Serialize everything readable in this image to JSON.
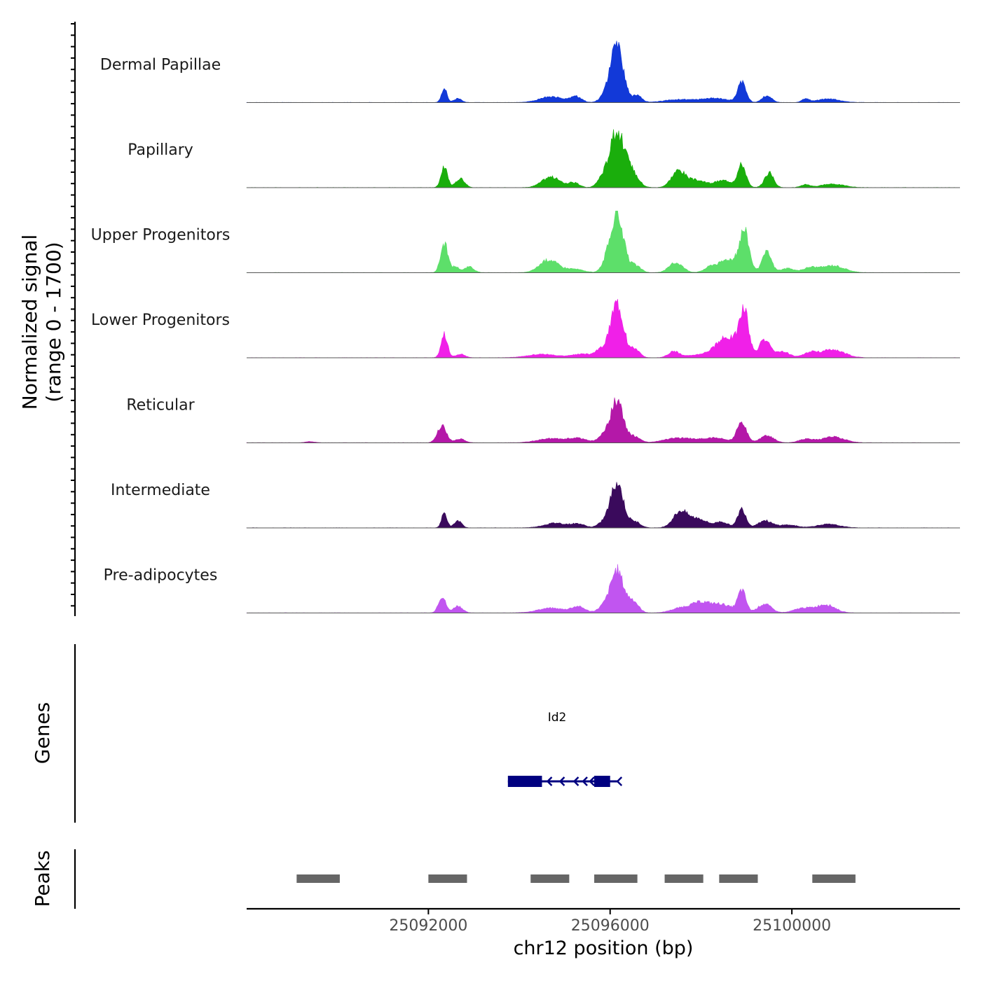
{
  "chart_data": {
    "type": "area",
    "title": "",
    "chromosome": "chr12",
    "xlabel": "chr12 position (bp)",
    "ylabel_line1": "Normalized signal",
    "ylabel_line2": "(range 0 - 1700)",
    "y_range": [
      0,
      1700
    ],
    "xlim": [
      25088000,
      25103700
    ],
    "x_ticks": [
      {
        "value": 25092000,
        "label": "25092000"
      },
      {
        "value": 25096000,
        "label": "25096000"
      },
      {
        "value": 25100000,
        "label": "25100000"
      }
    ],
    "peak_positions": [
      25089140,
      25092060,
      25092450,
      25092700,
      25093100,
      25094450,
      25095050,
      25095400,
      25095800,
      25096100,
      25096250,
      25096500,
      25097400,
      25097800,
      25098200,
      25098600,
      25098900,
      25099300,
      25099600,
      25100300,
      25100600,
      25101000,
      25101300
    ],
    "series": [
      {
        "name": "Dermal Papillae",
        "color": "#1239d8",
        "peaks": [
          {
            "x": 25092350,
            "h": 0.25,
            "w": 60
          },
          {
            "x": 25092650,
            "h": 0.07,
            "w": 80
          },
          {
            "x": 25094700,
            "h": 0.1,
            "w": 250
          },
          {
            "x": 25095250,
            "h": 0.1,
            "w": 120
          },
          {
            "x": 25095900,
            "h": 0.1,
            "w": 120
          },
          {
            "x": 25096150,
            "h": 0.95,
            "w": 140
          },
          {
            "x": 25096600,
            "h": 0.12,
            "w": 100
          },
          {
            "x": 25097500,
            "h": 0.05,
            "w": 300
          },
          {
            "x": 25098300,
            "h": 0.07,
            "w": 300
          },
          {
            "x": 25098900,
            "h": 0.35,
            "w": 90
          },
          {
            "x": 25099450,
            "h": 0.12,
            "w": 100
          },
          {
            "x": 25100300,
            "h": 0.06,
            "w": 80
          },
          {
            "x": 25100800,
            "h": 0.06,
            "w": 250
          }
        ]
      },
      {
        "name": "Papillary",
        "color": "#1aae0c",
        "peaks": [
          {
            "x": 25092350,
            "h": 0.35,
            "w": 70
          },
          {
            "x": 25092700,
            "h": 0.15,
            "w": 100
          },
          {
            "x": 25094700,
            "h": 0.18,
            "w": 200
          },
          {
            "x": 25095200,
            "h": 0.08,
            "w": 120
          },
          {
            "x": 25095800,
            "h": 0.1,
            "w": 100
          },
          {
            "x": 25096150,
            "h": 0.95,
            "w": 170
          },
          {
            "x": 25096500,
            "h": 0.2,
            "w": 140
          },
          {
            "x": 25097500,
            "h": 0.28,
            "w": 150
          },
          {
            "x": 25097900,
            "h": 0.12,
            "w": 200
          },
          {
            "x": 25098500,
            "h": 0.12,
            "w": 200
          },
          {
            "x": 25098900,
            "h": 0.38,
            "w": 90
          },
          {
            "x": 25099500,
            "h": 0.25,
            "w": 100
          },
          {
            "x": 25100300,
            "h": 0.05,
            "w": 100
          },
          {
            "x": 25100900,
            "h": 0.06,
            "w": 250
          }
        ]
      },
      {
        "name": "Upper Progenitors",
        "color": "#5ddf6a",
        "peaks": [
          {
            "x": 25092350,
            "h": 0.5,
            "w": 80
          },
          {
            "x": 25092600,
            "h": 0.1,
            "w": 80
          },
          {
            "x": 25092900,
            "h": 0.1,
            "w": 100
          },
          {
            "x": 25094650,
            "h": 0.22,
            "w": 200
          },
          {
            "x": 25095200,
            "h": 0.06,
            "w": 200
          },
          {
            "x": 25095900,
            "h": 0.12,
            "w": 100
          },
          {
            "x": 25096150,
            "h": 1.0,
            "w": 140
          },
          {
            "x": 25096550,
            "h": 0.12,
            "w": 120
          },
          {
            "x": 25097450,
            "h": 0.17,
            "w": 150
          },
          {
            "x": 25098250,
            "h": 0.12,
            "w": 150
          },
          {
            "x": 25098600,
            "h": 0.22,
            "w": 150
          },
          {
            "x": 25098950,
            "h": 0.72,
            "w": 110
          },
          {
            "x": 25099450,
            "h": 0.35,
            "w": 100
          },
          {
            "x": 25099900,
            "h": 0.07,
            "w": 150
          },
          {
            "x": 25100400,
            "h": 0.08,
            "w": 150
          },
          {
            "x": 25100900,
            "h": 0.12,
            "w": 250
          }
        ]
      },
      {
        "name": "Lower Progenitors",
        "color": "#f020e8",
        "peaks": [
          {
            "x": 25092350,
            "h": 0.4,
            "w": 70
          },
          {
            "x": 25092700,
            "h": 0.06,
            "w": 100
          },
          {
            "x": 25094500,
            "h": 0.06,
            "w": 300
          },
          {
            "x": 25095400,
            "h": 0.06,
            "w": 250
          },
          {
            "x": 25095800,
            "h": 0.12,
            "w": 120
          },
          {
            "x": 25096150,
            "h": 0.95,
            "w": 140
          },
          {
            "x": 25096550,
            "h": 0.15,
            "w": 100
          },
          {
            "x": 25097400,
            "h": 0.1,
            "w": 120
          },
          {
            "x": 25098000,
            "h": 0.05,
            "w": 300
          },
          {
            "x": 25098600,
            "h": 0.35,
            "w": 250
          },
          {
            "x": 25098950,
            "h": 0.72,
            "w": 100
          },
          {
            "x": 25099400,
            "h": 0.3,
            "w": 120
          },
          {
            "x": 25099800,
            "h": 0.1,
            "w": 150
          },
          {
            "x": 25100400,
            "h": 0.08,
            "w": 150
          },
          {
            "x": 25100900,
            "h": 0.14,
            "w": 250
          }
        ]
      },
      {
        "name": "Reticular",
        "color": "#b418a8",
        "peaks": [
          {
            "x": 25089400,
            "h": 0.02,
            "w": 100
          },
          {
            "x": 25092300,
            "h": 0.28,
            "w": 100
          },
          {
            "x": 25092700,
            "h": 0.07,
            "w": 100
          },
          {
            "x": 25094700,
            "h": 0.07,
            "w": 300
          },
          {
            "x": 25095300,
            "h": 0.07,
            "w": 200
          },
          {
            "x": 25095850,
            "h": 0.1,
            "w": 120
          },
          {
            "x": 25096150,
            "h": 0.72,
            "w": 140
          },
          {
            "x": 25096550,
            "h": 0.1,
            "w": 120
          },
          {
            "x": 25097500,
            "h": 0.08,
            "w": 300
          },
          {
            "x": 25098300,
            "h": 0.08,
            "w": 300
          },
          {
            "x": 25098900,
            "h": 0.35,
            "w": 100
          },
          {
            "x": 25099450,
            "h": 0.12,
            "w": 150
          },
          {
            "x": 25100300,
            "h": 0.06,
            "w": 150
          },
          {
            "x": 25100900,
            "h": 0.1,
            "w": 250
          }
        ]
      },
      {
        "name": "Intermediate",
        "color": "#3a0a5c",
        "peaks": [
          {
            "x": 25092350,
            "h": 0.25,
            "w": 60
          },
          {
            "x": 25092650,
            "h": 0.12,
            "w": 80
          },
          {
            "x": 25094800,
            "h": 0.08,
            "w": 250
          },
          {
            "x": 25095300,
            "h": 0.06,
            "w": 150
          },
          {
            "x": 25095850,
            "h": 0.08,
            "w": 120
          },
          {
            "x": 25096150,
            "h": 0.77,
            "w": 140
          },
          {
            "x": 25096550,
            "h": 0.1,
            "w": 120
          },
          {
            "x": 25097550,
            "h": 0.28,
            "w": 160
          },
          {
            "x": 25097950,
            "h": 0.15,
            "w": 180
          },
          {
            "x": 25098450,
            "h": 0.1,
            "w": 150
          },
          {
            "x": 25098900,
            "h": 0.32,
            "w": 90
          },
          {
            "x": 25099400,
            "h": 0.12,
            "w": 150
          },
          {
            "x": 25099900,
            "h": 0.05,
            "w": 200
          },
          {
            "x": 25100800,
            "h": 0.06,
            "w": 250
          }
        ]
      },
      {
        "name": "Pre-adipocytes",
        "color": "#c155f0",
        "peaks": [
          {
            "x": 25092300,
            "h": 0.28,
            "w": 80
          },
          {
            "x": 25092650,
            "h": 0.12,
            "w": 100
          },
          {
            "x": 25094700,
            "h": 0.08,
            "w": 300
          },
          {
            "x": 25095300,
            "h": 0.1,
            "w": 150
          },
          {
            "x": 25095850,
            "h": 0.1,
            "w": 120
          },
          {
            "x": 25096150,
            "h": 0.72,
            "w": 140
          },
          {
            "x": 25096500,
            "h": 0.2,
            "w": 120
          },
          {
            "x": 25097500,
            "h": 0.06,
            "w": 200
          },
          {
            "x": 25098000,
            "h": 0.18,
            "w": 250
          },
          {
            "x": 25098500,
            "h": 0.12,
            "w": 200
          },
          {
            "x": 25098900,
            "h": 0.37,
            "w": 90
          },
          {
            "x": 25099400,
            "h": 0.15,
            "w": 150
          },
          {
            "x": 25100250,
            "h": 0.08,
            "w": 200
          },
          {
            "x": 25100750,
            "h": 0.14,
            "w": 200
          }
        ]
      }
    ],
    "genes_label": "Genes",
    "gene": {
      "name": "Id2",
      "strand": "-",
      "color": "#000080",
      "start": 25093750,
      "end": 25096100,
      "exons": [
        [
          25093750,
          25094500
        ],
        [
          25095650,
          25096000
        ]
      ]
    },
    "peaks_label": "Peaks",
    "peaks_color": "#666666",
    "peak_regions": [
      [
        25089100,
        25090050
      ],
      [
        25092000,
        25092850
      ],
      [
        25094250,
        25095100
      ],
      [
        25095650,
        25096600
      ],
      [
        25097200,
        25098050
      ],
      [
        25098400,
        25099250
      ],
      [
        25100450,
        25101400
      ]
    ]
  }
}
